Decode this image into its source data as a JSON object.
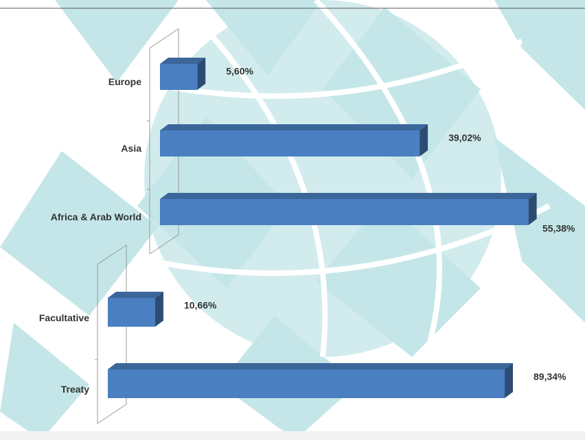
{
  "chart_data": [
    {
      "type": "bar",
      "orientation": "horizontal",
      "categories": [
        "Europe",
        "Asia",
        "Africa & Arab World"
      ],
      "values": [
        5.6,
        39.02,
        55.38
      ],
      "value_labels": [
        "5,60%",
        "39,02%",
        "55,38%"
      ],
      "color": "#4a7fc1"
    },
    {
      "type": "bar",
      "orientation": "horizontal",
      "categories": [
        "Facultative",
        "Treaty"
      ],
      "values": [
        10.66,
        89.34
      ],
      "value_labels": [
        "10,66%",
        "89,34%"
      ],
      "color": "#4a7fc1"
    }
  ]
}
